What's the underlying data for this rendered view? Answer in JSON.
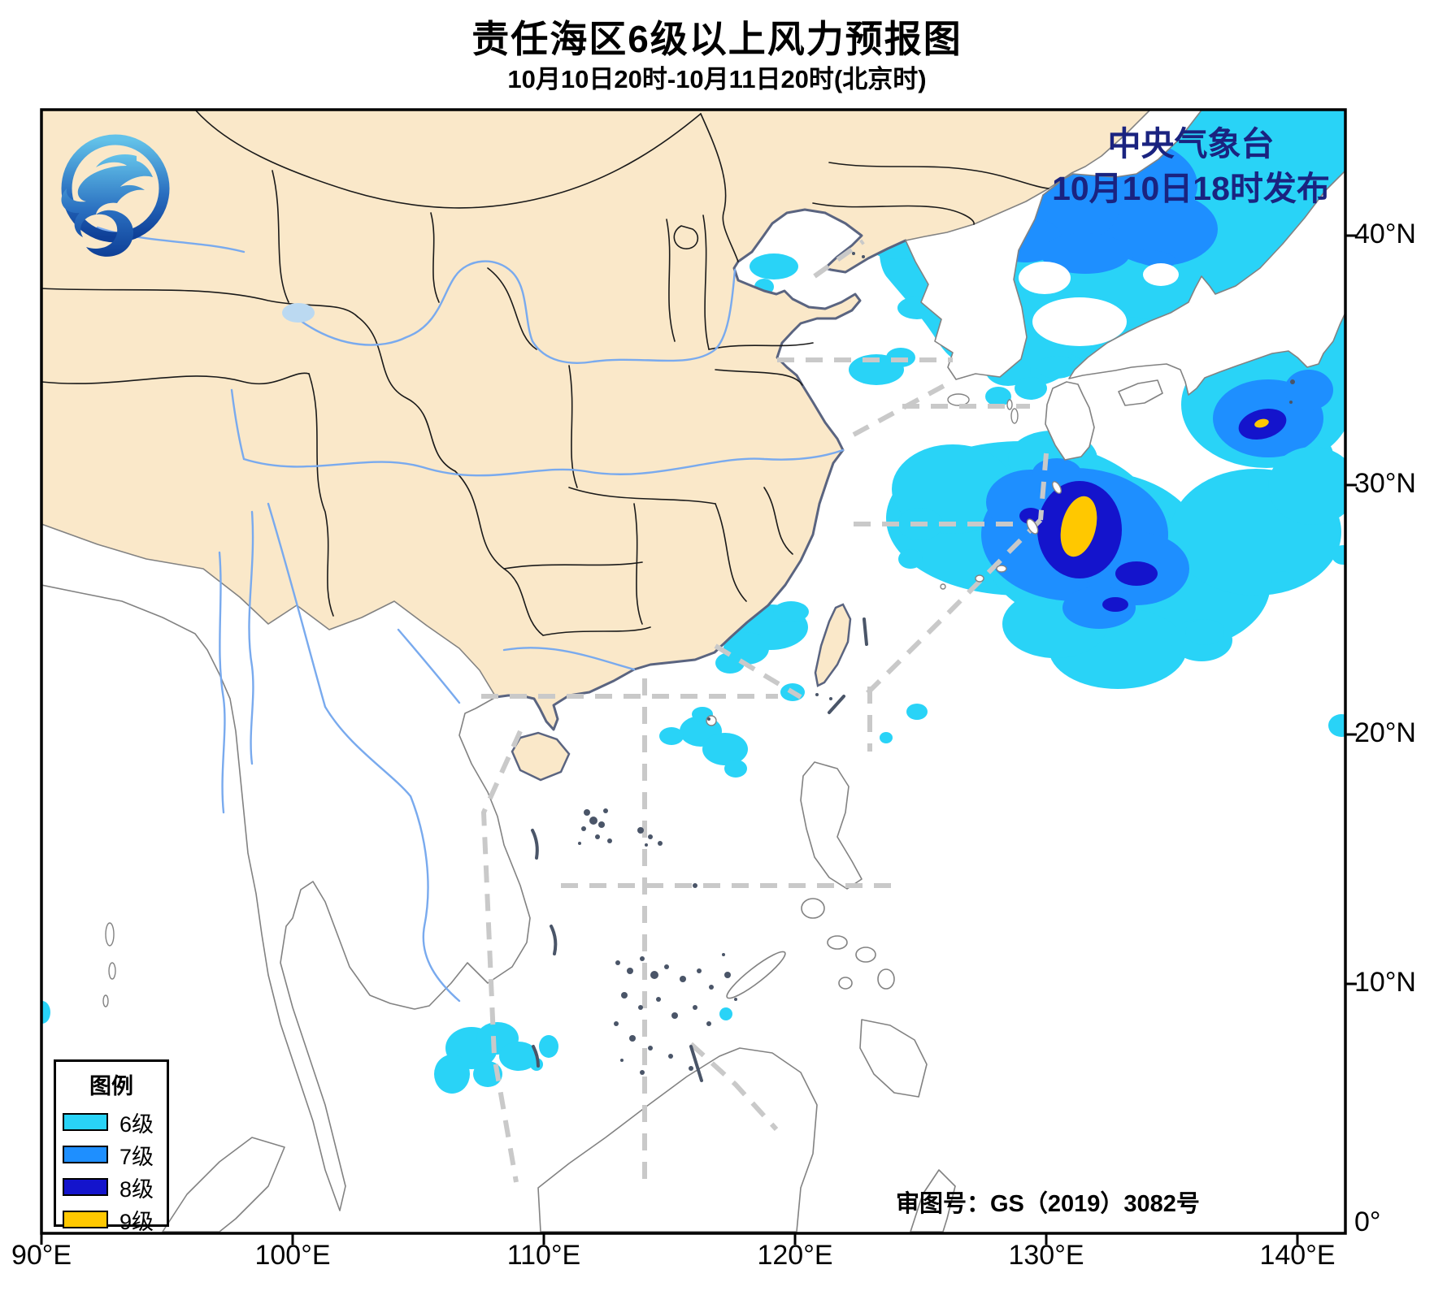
{
  "title": "责任海区6级以上风力预报图",
  "subtitle": "10月10日20时-10月11日20时(北京时)",
  "issuer": {
    "line1": "中央气象台",
    "line2": "10月10日18时发布"
  },
  "legend": {
    "title": "图例",
    "items": [
      {
        "label": "6级",
        "color": "#29d3f7"
      },
      {
        "label": "7级",
        "color": "#1e8fff"
      },
      {
        "label": "8级",
        "color": "#1414cc"
      },
      {
        "label": "9级",
        "color": "#ffc800"
      }
    ]
  },
  "approval": "审图号：GS（2019）3082号",
  "axes": {
    "x_ticks": [
      "90°E",
      "100°E",
      "110°E",
      "120°E",
      "130°E",
      "140°E"
    ],
    "y_ticks": [
      "40°N",
      "30°N",
      "20°N",
      "10°N",
      "0°"
    ]
  },
  "colors": {
    "land": "#fae8c9",
    "sea": "#ffffff",
    "wind6": "#29d3f7",
    "wind7": "#1e8fff",
    "wind8": "#1414cc",
    "wind9": "#ffc800",
    "issuer_text": "#1a2380"
  },
  "logo": "cma-dragon-logo"
}
